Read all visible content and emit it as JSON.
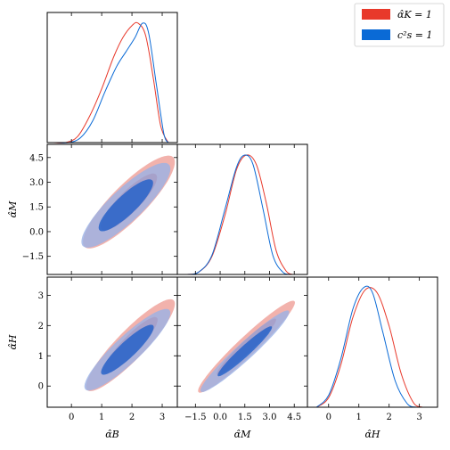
{
  "chart_data": {
    "type": "corner",
    "title": "",
    "parameters": [
      {
        "key": "aB",
        "label": "α̂B",
        "range": [
          -0.8,
          3.5
        ],
        "ticks": [
          "0",
          "1",
          "2",
          "3"
        ],
        "tick_values": [
          0,
          1,
          2,
          3
        ]
      },
      {
        "key": "aM",
        "label": "α̂M",
        "range": [
          -2.6,
          5.3
        ],
        "ticks": [
          "−1.5",
          "0.0",
          "1.5",
          "3.0",
          "4.5"
        ],
        "tick_values": [
          -1.5,
          0,
          1.5,
          3,
          4.5
        ]
      },
      {
        "key": "aH",
        "label": "α̂H",
        "range": [
          -0.7,
          3.6
        ],
        "ticks": [
          "0",
          "1",
          "2",
          "3"
        ],
        "tick_values": [
          0,
          1,
          2,
          3
        ]
      }
    ],
    "legend": {
      "placement": "top-right",
      "entries": [
        {
          "name": "α̂K = 1",
          "color": "#e8392b"
        },
        {
          "name": "c²s = 1",
          "color": "#0a6ad6"
        }
      ]
    },
    "series": [
      {
        "name": "α̂K = 1",
        "color": "#e8392b",
        "fill_inner": "#d9534a",
        "fill_outer": "#f0a49e",
        "marginals": {
          "aB": {
            "x": [
              -0.6,
              -0.2,
              0.2,
              0.6,
              1.0,
              1.4,
              1.7,
              2.0,
              2.2,
              2.45,
              2.7,
              2.95,
              3.2
            ],
            "y": [
              0.0,
              0.0,
              0.05,
              0.22,
              0.45,
              0.72,
              0.88,
              0.98,
              1.0,
              0.9,
              0.55,
              0.14,
              0.0
            ]
          },
          "aM": {
            "x": [
              -2.0,
              -1.3,
              -0.5,
              0.3,
              1.0,
              1.6,
              2.2,
              2.8,
              3.4,
              4.0,
              4.4
            ],
            "y": [
              0.0,
              0.02,
              0.15,
              0.5,
              0.88,
              1.0,
              0.92,
              0.6,
              0.2,
              0.03,
              0.0
            ]
          },
          "aH": {
            "x": [
              -0.4,
              0.0,
              0.4,
              0.8,
              1.2,
              1.6,
              2.0,
              2.4,
              2.8,
              3.1
            ],
            "y": [
              0.0,
              0.08,
              0.35,
              0.75,
              0.98,
              0.96,
              0.68,
              0.28,
              0.04,
              0.0
            ]
          }
        },
        "contours": {
          "aB_aM": {
            "mean": [
              1.9,
              1.8
            ],
            "sd": [
              0.62,
              1.15
            ],
            "corr": 0.86
          },
          "aB_aH": {
            "mean": [
              1.95,
              1.35
            ],
            "sd": [
              0.6,
              0.62
            ],
            "corr": 0.9
          },
          "aM_aH": {
            "mean": [
              1.6,
              1.3
            ],
            "sd": [
              1.2,
              0.62
            ],
            "corr": 0.96
          }
        }
      },
      {
        "name": "c²s = 1",
        "color": "#0a6ad6",
        "fill_inner": "#1f5fc8",
        "fill_outer": "#9ab2e6",
        "marginals": {
          "aB": {
            "x": [
              -0.5,
              -0.1,
              0.3,
              0.7,
              1.1,
              1.5,
              1.8,
              2.1,
              2.35,
              2.55,
              2.8,
              3.05,
              3.2
            ],
            "y": [
              0.0,
              0.0,
              0.04,
              0.18,
              0.42,
              0.64,
              0.76,
              0.88,
              1.0,
              0.92,
              0.5,
              0.08,
              0.0
            ]
          },
          "aM": {
            "x": [
              -2.0,
              -1.3,
              -0.5,
              0.3,
              1.0,
              1.5,
              2.0,
              2.6,
              3.2,
              3.8,
              4.3
            ],
            "y": [
              0.0,
              0.02,
              0.16,
              0.55,
              0.9,
              1.0,
              0.92,
              0.55,
              0.16,
              0.02,
              0.0
            ]
          },
          "aH": {
            "x": [
              -0.4,
              0.0,
              0.4,
              0.8,
              1.15,
              1.45,
              1.8,
              2.2,
              2.6,
              2.9
            ],
            "y": [
              0.0,
              0.1,
              0.4,
              0.82,
              1.0,
              0.96,
              0.62,
              0.22,
              0.03,
              0.0
            ]
          }
        },
        "contours": {
          "aB_aM": {
            "mean": [
              1.8,
              1.6
            ],
            "sd": [
              0.6,
              1.05
            ],
            "corr": 0.86
          },
          "aB_aH": {
            "mean": [
              1.85,
              1.2
            ],
            "sd": [
              0.58,
              0.55
            ],
            "corr": 0.9
          },
          "aM_aH": {
            "mean": [
              1.5,
              1.15
            ],
            "sd": [
              1.1,
              0.55
            ],
            "corr": 0.96
          }
        }
      }
    ]
  }
}
